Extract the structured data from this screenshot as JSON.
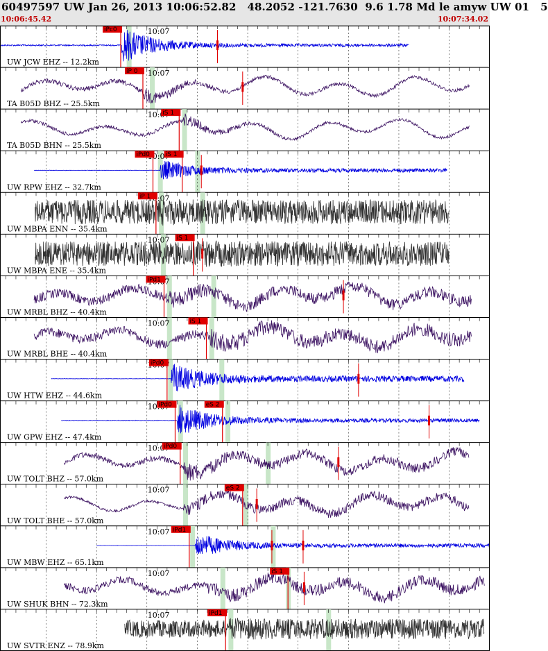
{
  "header": {
    "title": "60497597 UW Jan 26, 2013 10:06:52.82   48.2052 -121.7630  9.6 1.78 Md le amyw UW 01   5",
    "start_time": "10:06:45.42",
    "end_time": "10:07:34.02"
  },
  "colors": {
    "background": "#ffffff",
    "header": "#e6e6e6",
    "pick": "#e00000",
    "pick_window": "#c8e6c8"
  },
  "chart_data": {
    "type": "seismogram",
    "time_range": [
      "10:06:45.42",
      "10:07:34.02"
    ],
    "tick_label": "10:07",
    "tick_time": "10:07:00",
    "traces": [
      {
        "label": "UW JCW EHZ -- 12.2km",
        "color": "#0000e0",
        "kind": "hf",
        "start": "10:06:45.4",
        "end": "10:07:26.0",
        "onset": "10:06:57.5",
        "env": [
          0.25,
          1.0,
          0.08
        ],
        "picks": [
          {
            "label": "iPc0",
            "time": "10:06:57.4"
          }
        ],
        "marks": [
          "10:07:07.0"
        ],
        "green": [
          "10:06:58.2"
        ]
      },
      {
        "label": "TA B05D BHZ -- 25.5km",
        "color": "#3a1060",
        "kind": "lf",
        "start": "10:06:47.5",
        "end": "10:07:32.0",
        "onset": "10:06:59.6",
        "env": [
          0.2,
          0.7,
          0.15
        ],
        "picks": [
          {
            "label": "iP 0",
            "time": "10:06:59.6"
          }
        ],
        "marks": [
          "10:07:09.5"
        ],
        "green": [
          "10:07:00.5"
        ]
      },
      {
        "label": "TA B05D BHN -- 25.5km",
        "color": "#3a1060",
        "kind": "lf",
        "start": "10:06:47.5",
        "end": "10:07:32.0",
        "onset": "10:07:03.5",
        "env": [
          0.15,
          0.6,
          0.12
        ],
        "picks": [
          {
            "label": "iS 1",
            "time": "10:07:03.2"
          }
        ],
        "marks": [],
        "green": [
          "10:07:03.7"
        ]
      },
      {
        "label": "UW RPW EHZ -- 32.7km",
        "color": "#0000e0",
        "kind": "hf",
        "start": "10:06:48.8",
        "end": "10:07:29.8",
        "onset": "10:07:01.3",
        "env": [
          0.08,
          0.6,
          0.1
        ],
        "picks": [
          {
            "label": "iPd0",
            "time": "10:07:00.6"
          },
          {
            "label": "iS 1",
            "time": "10:07:03.5"
          }
        ],
        "marks": [
          "10:07:05.4"
        ],
        "green": [
          "10:07:01.3",
          "10:07:05.0"
        ]
      },
      {
        "label": "UW MBPA ENN -- 35.4km",
        "color": "#303030",
        "kind": "noise",
        "start": "10:06:48.9",
        "end": "10:07:30.0",
        "onset": "10:07:01.3",
        "env": [
          0.85,
          0.95,
          0.85
        ],
        "picks": [
          {
            "label": "iP 1",
            "time": "10:07:00.9"
          }
        ],
        "marks": [],
        "green": [
          "10:07:01.4",
          "10:07:05.5"
        ]
      },
      {
        "label": "UW MBPA ENE -- 35.4km",
        "color": "#303030",
        "kind": "noise",
        "start": "10:06:48.9",
        "end": "10:07:30.0",
        "onset": "10:07:05.5",
        "env": [
          0.85,
          0.95,
          0.85
        ],
        "picks": [
          {
            "label": "iS 1",
            "time": "10:07:04.6"
          }
        ],
        "marks": [
          "10:07:05.5"
        ],
        "green": [
          "10:07:01.6"
        ]
      },
      {
        "label": "UW MRBL BHZ -- 40.4km",
        "color": "#3a1060",
        "kind": "lf",
        "start": "10:06:48.8",
        "end": "10:07:32.2",
        "onset": "10:07:02.1",
        "env": [
          0.4,
          0.8,
          0.5
        ],
        "picks": [
          {
            "label": "iPd1",
            "time": "10:07:01.7"
          }
        ],
        "marks": [
          "10:07:19.5"
        ],
        "green": [
          "10:07:02.2",
          "10:07:06.6"
        ]
      },
      {
        "label": "UW MRBL BHE -- 40.4km",
        "color": "#3a1060",
        "kind": "lf",
        "start": "10:06:48.8",
        "end": "10:07:32.2",
        "onset": "10:07:06.3",
        "env": [
          0.4,
          0.9,
          0.6
        ],
        "picks": [
          {
            "label": "iS 1",
            "time": "10:07:05.9"
          }
        ],
        "marks": [],
        "green": [
          "10:07:02.2",
          "10:07:06.4"
        ]
      },
      {
        "label": "UW HTW EHZ -- 44.6km",
        "color": "#0000e0",
        "kind": "hf",
        "start": "10:06:50.5",
        "end": "10:07:31.5",
        "onset": "10:07:02.4",
        "env": [
          0.05,
          0.85,
          0.15
        ],
        "picks": [
          {
            "label": "iPd0",
            "time": "10:07:02.0"
          }
        ],
        "marks": [
          "10:07:21.0"
        ],
        "green": [
          "10:07:02.3",
          "10:07:07.4"
        ]
      },
      {
        "label": "UW GPW EHZ -- 47.4km",
        "color": "#0000e0",
        "kind": "hf",
        "start": "10:06:51.5",
        "end": "10:07:33.0",
        "onset": "10:07:03.0",
        "env": [
          0.1,
          0.9,
          0.1
        ],
        "picks": [
          {
            "label": "iPd0",
            "time": "10:07:02.8"
          },
          {
            "label": "eS 2",
            "time": "10:07:07.5"
          }
        ],
        "marks": [
          "10:07:28.0"
        ],
        "green": [
          "10:07:03.3",
          "10:07:08.0"
        ]
      },
      {
        "label": "UW TOLT BHZ -- 57.0km",
        "color": "#3a1060",
        "kind": "lf",
        "start": "10:06:51.8",
        "end": "10:07:32.0",
        "onset": "10:07:03.6",
        "env": [
          0.25,
          0.9,
          0.4
        ],
        "picks": [
          {
            "label": "iPd0",
            "time": "10:07:03.3"
          }
        ],
        "marks": [
          "10:07:19.0"
        ],
        "green": [
          "10:07:03.8",
          "10:07:12.0"
        ]
      },
      {
        "label": "UW TOLT BHE -- 57.0km",
        "color": "#3a1060",
        "kind": "lf",
        "start": "10:06:51.8",
        "end": "10:07:32.0",
        "onset": "10:07:03.6",
        "env": [
          0.12,
          0.6,
          0.4
        ],
        "picks": [
          {
            "label": "eS 2",
            "time": "10:07:09.5"
          }
        ],
        "marks": [
          "10:07:10.9"
        ],
        "green": [
          "10:07:03.8",
          "10:07:09.8"
        ]
      },
      {
        "label": "UW MBW EHZ -- 65.1km",
        "color": "#0000e0",
        "kind": "hf",
        "start": "10:06:55.0",
        "end": "10:07:34.0",
        "onset": "10:07:04.8",
        "env": [
          0.05,
          0.7,
          0.1
        ],
        "picks": [
          {
            "label": "iPd1",
            "time": "10:07:04.2"
          }
        ],
        "marks": [
          "10:07:12.4",
          "10:07:15.5"
        ],
        "green": [
          "10:07:04.5",
          "10:07:12.5"
        ]
      },
      {
        "label": "UW SHUK BHN -- 72.3km",
        "color": "#3a1060",
        "kind": "lf",
        "start": "10:06:51.8",
        "end": "10:07:33.5",
        "onset": "10:07:06.0",
        "env": [
          0.3,
          0.7,
          0.5
        ],
        "picks": [
          {
            "label": "iS 1",
            "time": "10:07:14.0"
          }
        ],
        "marks": [
          "10:07:15.6"
        ],
        "green": [
          "10:07:07.5",
          "10:07:14.0"
        ]
      },
      {
        "label": "UW SVTR ENZ -- 78.9km",
        "color": "#303030",
        "kind": "noise",
        "start": "10:06:57.8",
        "end": "10:07:33.5",
        "onset": "10:07:08.0",
        "env": [
          0.6,
          0.8,
          0.7
        ],
        "picks": [
          {
            "label": "iPd1",
            "time": "10:07:07.8"
          }
        ],
        "marks": [],
        "green": [
          "10:07:08.3",
          "10:07:18.0"
        ]
      }
    ]
  }
}
